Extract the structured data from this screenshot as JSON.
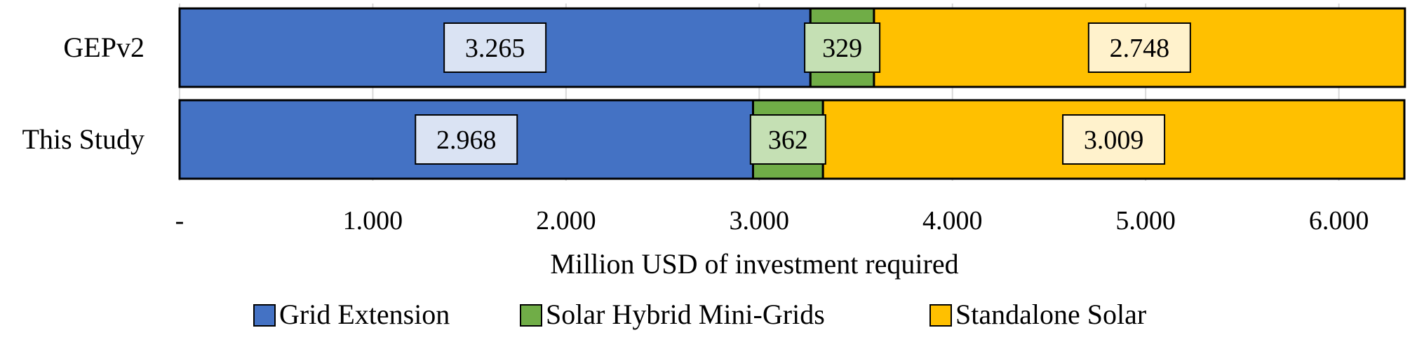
{
  "chart_data": {
    "type": "bar",
    "orientation": "horizontal",
    "stacked": true,
    "categories": [
      "GEPv2",
      "This Study"
    ],
    "series": [
      {
        "name": "Grid Extension",
        "color": "#4472C4",
        "label_bg": "#DAE3F3",
        "values": [
          3265,
          2968
        ],
        "labels": [
          "3.265",
          "2.968"
        ]
      },
      {
        "name": "Solar Hybrid Mini-Grids",
        "color": "#70AD47",
        "label_bg": "#C5E0B4",
        "values": [
          329,
          362
        ],
        "labels": [
          "329",
          "362"
        ]
      },
      {
        "name": "Standalone Solar",
        "color": "#FFC000",
        "label_bg": "#FFF2CC",
        "values": [
          2748,
          3009
        ],
        "labels": [
          "2.748",
          "3.009"
        ]
      }
    ],
    "xlabel": "Million USD of investment required",
    "xlim": [
      0,
      6350
    ],
    "xticks": [
      0,
      1000,
      2000,
      3000,
      4000,
      5000,
      6000
    ],
    "xtick_labels": [
      "-",
      "1.000",
      "2.000",
      "3.000",
      "4.000",
      "5.000",
      "6.000"
    ],
    "grid": "vertical",
    "legend": "bottom"
  }
}
